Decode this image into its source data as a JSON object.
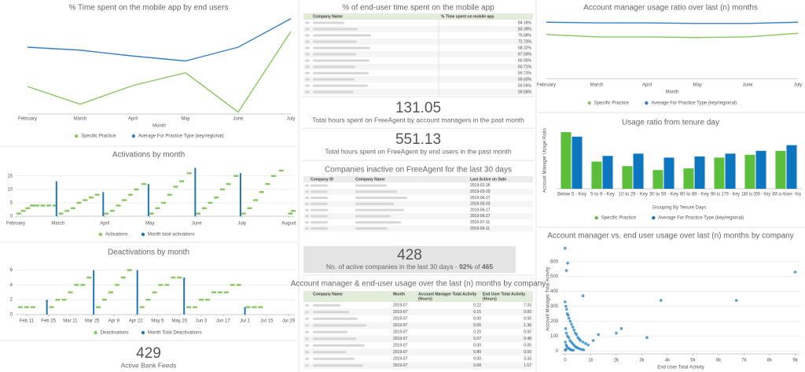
{
  "chart_data": [
    {
      "type": "line",
      "title": "% Time spent on the mobile app by end users",
      "x_label": "Month",
      "categories": [
        "February",
        "March",
        "April",
        "May",
        "June",
        "July"
      ],
      "ylim": [
        0,
        100
      ],
      "series": [
        {
          "name": "Specific Practice",
          "color": "#86c75f",
          "values": [
            28,
            10,
            29,
            42,
            2,
            84
          ]
        },
        {
          "name": "Average For Practice Type (key/regional)",
          "color": "#3a7fc0",
          "values": [
            68,
            65,
            59,
            54,
            68,
            97
          ]
        }
      ]
    },
    {
      "type": "combo",
      "title": "Activations by month",
      "xlim": [
        0,
        185
      ],
      "ylim": [
        0,
        19
      ],
      "yticks": [
        0,
        5,
        10,
        15
      ],
      "xticks": [
        {
          "value": 0,
          "label": "February"
        },
        {
          "value": 28,
          "label": "March"
        },
        {
          "value": 59,
          "label": "April"
        },
        {
          "value": 89,
          "label": "May"
        },
        {
          "value": 120,
          "label": "June"
        },
        {
          "value": 150,
          "label": "July"
        },
        {
          "value": 181,
          "label": "August"
        }
      ],
      "series": [
        {
          "name": "Activations",
          "type": "scatter",
          "color": "#86c75f",
          "x": [
            2,
            5,
            8,
            11,
            14,
            18,
            22,
            26,
            30,
            34,
            38,
            42,
            46,
            50,
            54,
            60,
            64,
            68,
            72,
            76,
            80,
            85,
            90,
            94,
            98,
            102,
            106,
            110,
            115,
            121,
            125,
            129,
            133,
            137,
            141,
            146,
            151,
            155,
            159,
            163,
            167,
            171,
            176,
            182,
            184
          ],
          "values": [
            1,
            2,
            3,
            4,
            4,
            4,
            4,
            4,
            1,
            2,
            3,
            5,
            6,
            7,
            8,
            1,
            2,
            4,
            6,
            8,
            10,
            12,
            1,
            3,
            5,
            8,
            11,
            13,
            16,
            1,
            3,
            5,
            7,
            10,
            12,
            15,
            1,
            3,
            6,
            9,
            12,
            15,
            17,
            1,
            2
          ]
        },
        {
          "name": "Month total activations",
          "type": "bar",
          "color": "#1f77b4",
          "x": [
            27,
            58,
            88,
            119,
            149
          ],
          "values": [
            13,
            9,
            12,
            18,
            16
          ]
        }
      ]
    },
    {
      "type": "combo",
      "title": "Deactivations by month",
      "xlim": [
        -7,
        172
      ],
      "ylim": [
        0,
        7
      ],
      "yticks": [
        0,
        2,
        4,
        6
      ],
      "xticks": [
        {
          "value": 0,
          "label": "Feb 11"
        },
        {
          "value": 14,
          "label": "Feb 25"
        },
        {
          "value": 28,
          "label": "Mar 11"
        },
        {
          "value": 42,
          "label": "Mar 25"
        },
        {
          "value": 56,
          "label": "Apr 8"
        },
        {
          "value": 70,
          "label": "Apr 22"
        },
        {
          "value": 84,
          "label": "May 6"
        },
        {
          "value": 98,
          "label": "May 20"
        },
        {
          "value": 112,
          "label": "Jun 3"
        },
        {
          "value": 126,
          "label": "Jun 17"
        },
        {
          "value": 140,
          "label": "Jul 1"
        },
        {
          "value": 154,
          "label": "Jul 15"
        },
        {
          "value": 168,
          "label": "Jul 29"
        }
      ],
      "series": [
        {
          "name": "Deactivations",
          "type": "scatter",
          "color": "#86c75f",
          "x": [
            -4,
            0,
            4,
            16,
            20,
            24,
            28,
            32,
            36,
            40,
            46,
            50,
            54,
            58,
            62,
            66,
            74,
            78,
            82,
            86,
            90,
            94,
            98,
            104,
            108,
            112,
            116,
            120,
            124,
            128,
            132,
            136,
            142,
            146,
            150
          ],
          "values": [
            1,
            1,
            1,
            1,
            2,
            2,
            3,
            4,
            4,
            5,
            1,
            2,
            3,
            4,
            5,
            6,
            1,
            2,
            3,
            4,
            4,
            5,
            5,
            1,
            1,
            2,
            2,
            3,
            3,
            3,
            4,
            4,
            1,
            1,
            1
          ]
        },
        {
          "name": "Month Total Deactivations",
          "type": "bar",
          "color": "#1f77b4",
          "x": [
            13,
            43,
            71,
            101,
            140
          ],
          "values": [
            2,
            6,
            6,
            5,
            1
          ]
        }
      ]
    },
    {
      "type": "line",
      "title": "Account manager usage ratio over last (n) months",
      "x_label": "Month",
      "categories": [
        "February",
        "March",
        "April",
        "May",
        "June",
        "July"
      ],
      "ylim": [
        0,
        100
      ],
      "series": [
        {
          "name": "Specific Practice",
          "color": "#86c75f",
          "values": [
            72,
            68,
            68,
            67,
            68,
            74
          ]
        },
        {
          "name": "Average For Practice Type (key/regional)",
          "color": "#3a7fc0",
          "values": [
            92,
            91,
            91,
            90,
            90,
            92
          ]
        }
      ]
    },
    {
      "type": "bar",
      "title": "Usage ratio from tenure day",
      "x_label": "Grouping By Tenure Days",
      "y_label": "Account Manager Usage Ratio",
      "categories": [
        "Below 5 - Key",
        "5 to 9 - Key",
        "10 to 29 - Key",
        "30 to 59 - Key",
        "60 to 89 - Key",
        "90 to 179 - Key",
        "180 to 359 - Key",
        "360 or Above - Key"
      ],
      "ylim": [
        0,
        100
      ],
      "series": [
        {
          "name": "Specific Practice",
          "color": "#5cbf3c",
          "values": [
            100,
            48,
            40,
            33,
            36,
            55,
            60,
            67
          ]
        },
        {
          "name": "Average For Practice Type (key/regional)",
          "color": "#0c76c0",
          "values": [
            92,
            58,
            62,
            55,
            57,
            62,
            67,
            77
          ]
        }
      ]
    },
    {
      "type": "scatter",
      "title": "Account manager vs. end user usage over last (n) months by company",
      "x_label": "End User Total Activity",
      "y_label": "Account Manager Total Activity",
      "xlim": [
        -150,
        9200
      ],
      "ylim": [
        -20,
        720
      ],
      "yticks": [
        0,
        100,
        200,
        300,
        400,
        500,
        600
      ],
      "xticks": [
        0,
        {
          "value": 1000,
          "label": "1k"
        },
        {
          "value": 2000,
          "label": "2k"
        },
        {
          "value": 3000,
          "label": "3k"
        },
        {
          "value": 4000,
          "label": "4k"
        },
        {
          "value": 5000,
          "label": "5k"
        },
        {
          "value": 6000,
          "label": "6k"
        },
        {
          "value": 7000,
          "label": "7k"
        },
        {
          "value": 8000,
          "label": "8k"
        },
        {
          "value": 9000,
          "label": "9k"
        }
      ],
      "color": "#2c86c8",
      "x": [
        0,
        100,
        50,
        9000,
        700,
        3750,
        6700,
        3200,
        2200,
        2000,
        1300,
        1100,
        0,
        30,
        60,
        80,
        120,
        150,
        200,
        250,
        300,
        350,
        400,
        450,
        500,
        550,
        600,
        700,
        800,
        900,
        20,
        50,
        90,
        140,
        190,
        240,
        290,
        340,
        390,
        440,
        490,
        560,
        640,
        720,
        10,
        40,
        70,
        110,
        160,
        210,
        260,
        320,
        30,
        5
      ],
      "values": [
        690,
        590,
        540,
        530,
        370,
        340,
        340,
        90,
        150,
        120,
        110,
        70,
        330,
        300,
        280,
        250,
        240,
        220,
        200,
        180,
        160,
        140,
        120,
        110,
        90,
        80,
        70,
        60,
        50,
        40,
        150,
        120,
        100,
        90,
        70,
        60,
        50,
        40,
        30,
        25,
        20,
        15,
        10,
        8,
        60,
        40,
        30,
        20,
        15,
        10,
        5,
        5,
        10,
        5
      ]
    }
  ],
  "kpis": [
    {
      "value": "429",
      "label": "Active Bank Feeds"
    },
    {
      "value": "131.05",
      "label": "Total hours spent on FreeAgent by account managers in the past month"
    },
    {
      "value": "551.13",
      "label": "Total hours spent on FreeAgent by end users in the past month"
    }
  ],
  "active_companies": {
    "value": "428",
    "text": "No. of active companies in the last 30 days - ",
    "percent": "92%",
    "of": " of ",
    "total": "465"
  },
  "tables": [
    {
      "title": "% of end-user time spent on the mobile app",
      "headers": [
        "Company Name",
        "% Time spent on mobile app"
      ],
      "rows": [
        "84.18%",
        "83.39%",
        "75.68%",
        "72.73%",
        "68.32%",
        "67.59%",
        "65.00%",
        "60.71%",
        "59.73%",
        "59.60%",
        "59.59%",
        "59.58%"
      ]
    },
    {
      "title": "Companies inactive on FreeAgent for the last 30 days",
      "headers": [
        "Company ID",
        "Company Name",
        "Last Active on Date"
      ],
      "rows": [
        "2019-02-26",
        "2019-03-20",
        "2019-06-27",
        "2018-05-03",
        "2019-06-17",
        "2019-06-27",
        "2019-07-11",
        "2019-06-11"
      ]
    },
    {
      "title": "Account manager & end-user usage over the last (n) months by company",
      "headers": [
        "Company Name",
        "Month",
        [
          "Account Manager Total Activity",
          "(Hours)"
        ],
        [
          "End User Total Activity",
          "(Hours)"
        ]
      ],
      "rows": [
        [
          "2019-07",
          "0.22",
          "7.33"
        ],
        [
          "2019-07",
          "0.15",
          "0.00"
        ],
        [
          "2019-07",
          "0.00",
          "0.00"
        ],
        [
          "2019-07",
          "0.00",
          "1.36"
        ],
        [
          "2019-07",
          "0.20",
          "0.92"
        ],
        [
          "2019-07",
          "0.07",
          "0.48"
        ],
        [
          "2019-07",
          "0.00",
          "0.00"
        ],
        [
          "2019-07",
          "0.80",
          "0.00"
        ],
        [
          "2019-07",
          "0.00",
          "3.33"
        ],
        [
          "2019-07",
          "0.68",
          "1.57"
        ]
      ]
    }
  ]
}
